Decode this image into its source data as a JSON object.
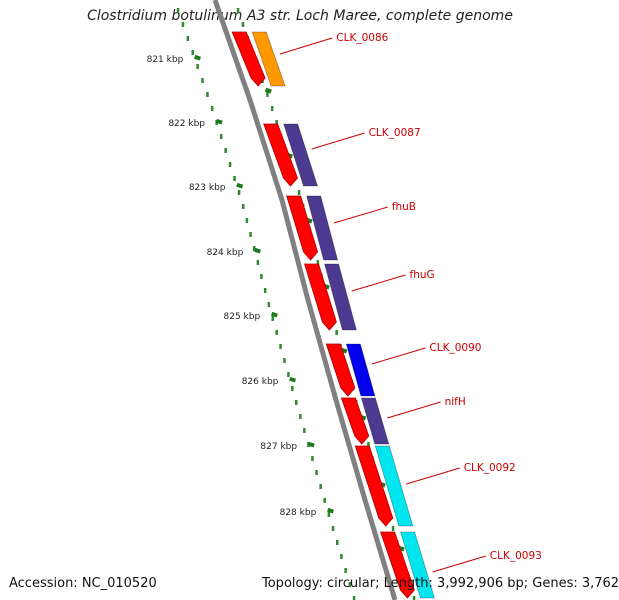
{
  "title": "Clostridium botulinum A3 str. Loch Maree, complete genome",
  "footer": {
    "accession": "Accession: NC_010520",
    "topology": "Topology: circular; Length: 3,992,906 bp; Genes: 3,762"
  },
  "colors": {
    "backbone": "#808080",
    "tick": "#1f7a1f",
    "dot": "#2e8b2e",
    "label": "#cc0000",
    "cds": "#ff0000",
    "orange": "#ff9900",
    "purple": "#4b3a8f",
    "blue": "#0000ee",
    "cyan": "#00e5ee"
  },
  "scale": {
    "ticks": [
      "821 kbp",
      "822 kbp",
      "823 kbp",
      "824 kbp",
      "825 kbp",
      "826 kbp",
      "827 kbp",
      "828 kbp"
    ]
  },
  "genes": [
    {
      "label": "CLK_0086",
      "color": "orange"
    },
    {
      "label": "CLK_0087",
      "color": "purple"
    },
    {
      "label": "fhuB",
      "color": "purple"
    },
    {
      "label": "fhuG",
      "color": "purple"
    },
    {
      "label": "CLK_0090",
      "color": "blue"
    },
    {
      "label": "nifH",
      "color": "purple"
    },
    {
      "label": "CLK_0092",
      "color": "cyan"
    },
    {
      "label": "CLK_0093",
      "color": "cyan"
    }
  ]
}
